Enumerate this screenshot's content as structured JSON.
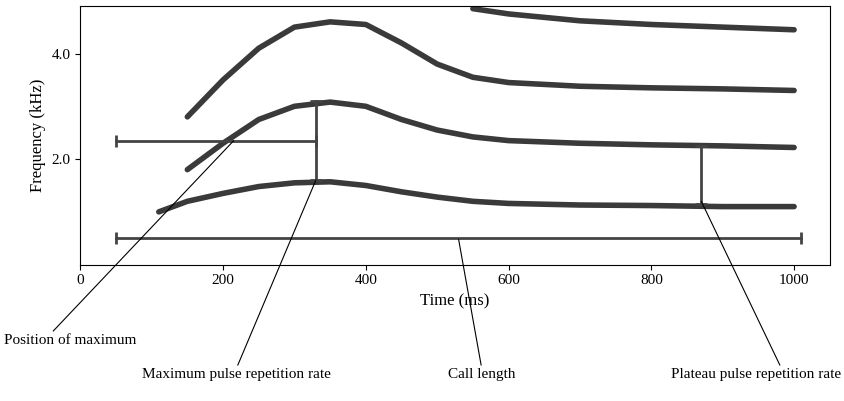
{
  "chart_data": {
    "type": "line",
    "x_label": "Time (ms)",
    "y_label": "Frequency (kHz)",
    "xlim": [
      0,
      1050
    ],
    "ylim": [
      0,
      4.9
    ],
    "xticks": [
      0,
      200,
      400,
      600,
      800,
      1000
    ],
    "yticks": [
      {
        "value": 2.0,
        "label": "2.0"
      },
      {
        "value": 4.0,
        "label": "4.0"
      }
    ],
    "color": "#3a3a3a",
    "series": [
      {
        "x": [
          110,
          150,
          200,
          250,
          300,
          350,
          400,
          450,
          500,
          550,
          600,
          700,
          800,
          900,
          1000
        ],
        "values": [
          1.0,
          1.2,
          1.35,
          1.48,
          1.55,
          1.57,
          1.5,
          1.38,
          1.28,
          1.2,
          1.16,
          1.13,
          1.12,
          1.1,
          1.1
        ]
      },
      {
        "x": [
          150,
          200,
          250,
          300,
          350,
          400,
          450,
          500,
          550,
          600,
          700,
          800,
          900,
          1000
        ],
        "values": [
          1.8,
          2.3,
          2.75,
          3.0,
          3.08,
          3.0,
          2.75,
          2.55,
          2.42,
          2.35,
          2.3,
          2.27,
          2.25,
          2.22
        ]
      },
      {
        "x": [
          150,
          200,
          250,
          300,
          350,
          400,
          450,
          500,
          550,
          600,
          700,
          800,
          900,
          1000
        ],
        "values": [
          2.8,
          3.5,
          4.1,
          4.5,
          4.6,
          4.55,
          4.2,
          3.8,
          3.55,
          3.45,
          3.38,
          3.35,
          3.33,
          3.3
        ]
      },
      {
        "x": [
          550,
          600,
          700,
          800,
          900,
          1000
        ],
        "values": [
          4.85,
          4.75,
          4.62,
          4.55,
          4.5,
          4.45
        ]
      }
    ],
    "annotations": [
      {
        "text": "Position of maximum",
        "start": [
          50,
          2.35
        ],
        "end": [
          330,
          2.35
        ],
        "point": [
          215,
          2.35
        ]
      },
      {
        "text": "Maximum pulse repetition rate",
        "start": [
          330,
          1.6
        ],
        "end": [
          330,
          3.1
        ],
        "point": [
          330,
          1.6
        ]
      },
      {
        "text": "Call length",
        "start": [
          50,
          0.5
        ],
        "end": [
          1010,
          0.5
        ],
        "point": [
          530,
          0.48
        ]
      },
      {
        "text": "Plateau pulse repetition rate",
        "start": [
          870,
          1.15
        ],
        "end": [
          870,
          2.25
        ],
        "point": [
          870,
          1.2
        ]
      }
    ]
  }
}
